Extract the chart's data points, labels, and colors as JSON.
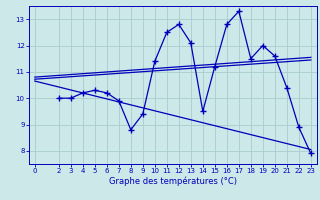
{
  "xlabel": "Graphe des températures (°C)",
  "bg_color": "#cce8e8",
  "grid_color": "#aacccc",
  "line_color": "#0000bb",
  "ylim": [
    7.5,
    13.5
  ],
  "xlim": [
    -0.5,
    23.5
  ],
  "yticks": [
    8,
    9,
    10,
    11,
    12,
    13
  ],
  "xticks": [
    0,
    2,
    3,
    4,
    5,
    6,
    7,
    8,
    9,
    10,
    11,
    12,
    13,
    14,
    15,
    16,
    17,
    18,
    19,
    20,
    21,
    22,
    23
  ],
  "data_x": [
    2,
    3,
    4,
    5,
    6,
    7,
    8,
    9,
    10,
    11,
    12,
    13,
    14,
    15,
    16,
    17,
    18,
    19,
    20,
    21,
    22,
    23
  ],
  "data_y": [
    10.0,
    10.0,
    10.2,
    10.3,
    10.2,
    9.9,
    8.8,
    9.4,
    11.4,
    12.5,
    12.8,
    12.1,
    9.5,
    11.2,
    12.8,
    13.3,
    11.5,
    12.0,
    11.6,
    10.4,
    8.9,
    7.9
  ],
  "trend1_x": [
    0,
    23
  ],
  "trend1_y": [
    10.8,
    11.55
  ],
  "trend2_x": [
    0,
    23
  ],
  "trend2_y": [
    10.72,
    11.45
  ],
  "trend3_x": [
    0,
    23
  ],
  "trend3_y": [
    10.65,
    8.05
  ]
}
